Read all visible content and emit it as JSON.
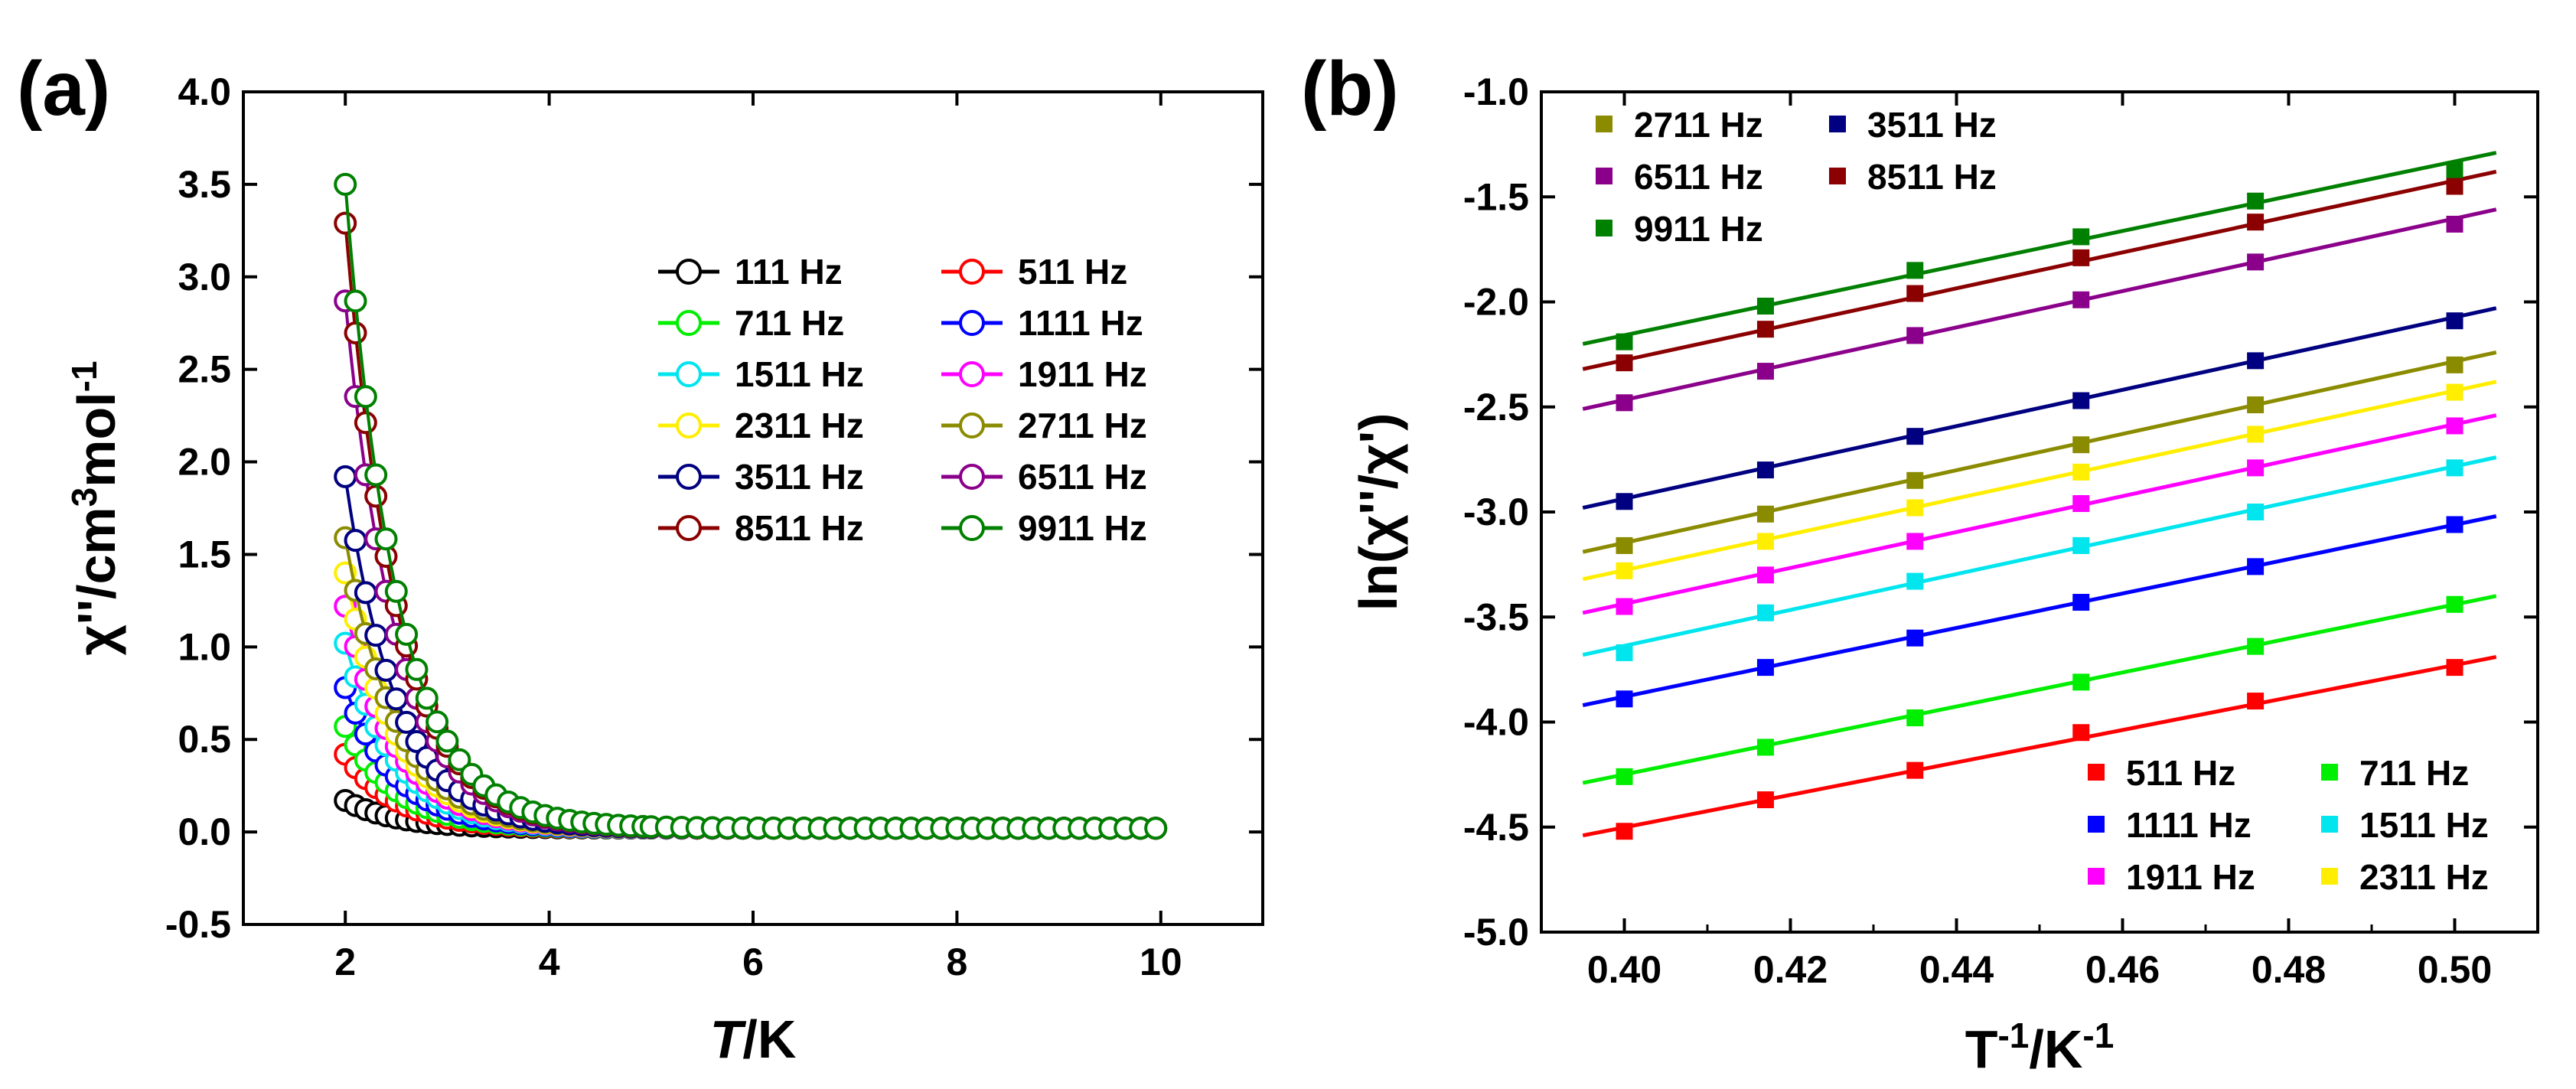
{
  "figure": {
    "panel_a_label": "(a)",
    "panel_b_label": "(b)"
  },
  "chart_data": [
    {
      "type": "scatter",
      "panel": "(a)",
      "title": "",
      "xlabel_italic": "T",
      "xlabel_rest": "/K",
      "ylabel_main": "χ''/cm",
      "ylabel_sup1": "3",
      "ylabel_mid": "mol",
      "ylabel_sup2": "-1",
      "xlim": [
        1.0,
        11.0
      ],
      "ylim": [
        -0.5,
        4.0
      ],
      "xticks": [
        2,
        4,
        6,
        8,
        10
      ],
      "xtick_labels": [
        "2",
        "4",
        "6",
        "8",
        "10"
      ],
      "yticks": [
        -0.5,
        0.0,
        0.5,
        1.0,
        1.5,
        2.0,
        2.5,
        3.0,
        3.5,
        4.0
      ],
      "ytick_labels": [
        "-0.5",
        "0.0",
        "0.5",
        "1.0",
        "1.5",
        "2.0",
        "2.5",
        "3.0",
        "3.5",
        "4.0"
      ],
      "grid": false,
      "legend_position": "upper-right",
      "marker": "open-circle",
      "series": [
        {
          "name": "111 Hz",
          "color": "#000000",
          "peak": 0.15
        },
        {
          "name": "511 Hz",
          "color": "#ff0000",
          "peak": 0.4
        },
        {
          "name": "711 Hz",
          "color": "#00ee00",
          "peak": 0.55
        },
        {
          "name": "1111 Hz",
          "color": "#0000ff",
          "peak": 0.76
        },
        {
          "name": "1511 Hz",
          "color": "#00e5ee",
          "peak": 1.0
        },
        {
          "name": "1911 Hz",
          "color": "#ff00ff",
          "peak": 1.2
        },
        {
          "name": "2311 Hz",
          "color": "#ffee00",
          "peak": 1.38
        },
        {
          "name": "2711 Hz",
          "color": "#8b8b00",
          "peak": 1.57
        },
        {
          "name": "3511 Hz",
          "color": "#000080",
          "peak": 1.9
        },
        {
          "name": "6511 Hz",
          "color": "#8b008b",
          "peak": 2.85
        },
        {
          "name": "8511 Hz",
          "color": "#8b0000",
          "peak": 3.27
        },
        {
          "name": "9911 Hz",
          "color": "#008000",
          "peak": 3.48
        }
      ],
      "curve_model": "y = peak * exp(-(T - 2) * 2.0) + 0.02 for T from 2 to 10 K"
    },
    {
      "type": "scatter",
      "panel": "(b)",
      "title": "",
      "xlabel_main": "T",
      "xlabel_sup1": "-1",
      "xlabel_mid": "/K",
      "xlabel_sup2": "-1",
      "ylabel": "ln(χ''/χ')",
      "xlim": [
        0.39,
        0.51
      ],
      "ylim": [
        -5.0,
        -1.0
      ],
      "xticks": [
        0.4,
        0.42,
        0.44,
        0.46,
        0.48,
        0.5
      ],
      "xtick_labels": [
        "0.40",
        "0.42",
        "0.44",
        "0.46",
        "0.48",
        "0.50"
      ],
      "yticks": [
        -5.0,
        -4.5,
        -4.0,
        -3.5,
        -3.0,
        -2.5,
        -2.0,
        -1.5,
        -1.0
      ],
      "ytick_labels": [
        "-5.0",
        "-4.5",
        "-4.0",
        "-3.5",
        "-3.0",
        "-2.5",
        "-2.0",
        "-1.5",
        "-1.0"
      ],
      "grid": false,
      "marker": "filled-square",
      "fit": "linear",
      "fit_range": [
        0.395,
        0.505
      ],
      "x": [
        0.4,
        0.417,
        0.435,
        0.455,
        0.476,
        0.5
      ],
      "legend_top": [
        "2711 Hz",
        "3511 Hz",
        "6511 Hz",
        "8511 Hz",
        "9911 Hz"
      ],
      "legend_bottom": [
        "511 Hz",
        "711 Hz",
        "1111 Hz",
        "1511 Hz",
        "1911 Hz",
        "2311 Hz"
      ],
      "series": [
        {
          "name": "511 Hz",
          "color": "#ff0000",
          "values": [
            -4.52,
            -4.37,
            -4.23,
            -4.05,
            -3.9,
            -3.74
          ],
          "fit_endpoints": [
            -4.54,
            -3.69
          ]
        },
        {
          "name": "711 Hz",
          "color": "#00ee00",
          "values": [
            -4.26,
            -4.12,
            -3.98,
            -3.81,
            -3.64,
            -3.44
          ],
          "fit_endpoints": [
            -4.29,
            -3.4
          ]
        },
        {
          "name": "1111 Hz",
          "color": "#0000ff",
          "values": [
            -3.89,
            -3.74,
            -3.6,
            -3.43,
            -3.26,
            -3.06
          ],
          "fit_endpoints": [
            -3.92,
            -3.02
          ]
        },
        {
          "name": "1511 Hz",
          "color": "#00e5ee",
          "values": [
            -3.67,
            -3.48,
            -3.33,
            -3.16,
            -3.0,
            -2.79
          ],
          "fit_endpoints": [
            -3.68,
            -2.74
          ]
        },
        {
          "name": "1911 Hz",
          "color": "#ff00ff",
          "values": [
            -3.45,
            -3.3,
            -3.14,
            -2.96,
            -2.79,
            -2.59
          ],
          "fit_endpoints": [
            -3.48,
            -2.54
          ]
        },
        {
          "name": "2311 Hz",
          "color": "#ffee00",
          "values": [
            -3.28,
            -3.14,
            -2.98,
            -2.81,
            -2.63,
            -2.43
          ],
          "fit_endpoints": [
            -3.32,
            -2.38
          ]
        },
        {
          "name": "2711 Hz",
          "color": "#8b8b00",
          "values": [
            -3.16,
            -3.01,
            -2.85,
            -2.68,
            -2.49,
            -2.3
          ],
          "fit_endpoints": [
            -3.19,
            -2.24
          ]
        },
        {
          "name": "3511 Hz",
          "color": "#000080",
          "values": [
            -2.95,
            -2.8,
            -2.64,
            -2.47,
            -2.28,
            -2.09
          ],
          "fit_endpoints": [
            -2.98,
            -2.03
          ]
        },
        {
          "name": "6511 Hz",
          "color": "#8b008b",
          "values": [
            -2.48,
            -2.33,
            -2.16,
            -1.99,
            -1.81,
            -1.63
          ],
          "fit_endpoints": [
            -2.51,
            -1.56
          ]
        },
        {
          "name": "8511 Hz",
          "color": "#8b0000",
          "values": [
            -2.29,
            -2.13,
            -1.96,
            -1.79,
            -1.62,
            -1.45
          ],
          "fit_endpoints": [
            -2.32,
            -1.38
          ]
        },
        {
          "name": "9911 Hz",
          "color": "#008000",
          "values": [
            -2.19,
            -2.02,
            -1.85,
            -1.69,
            -1.52,
            -1.37
          ],
          "fit_endpoints": [
            -2.2,
            -1.29
          ]
        }
      ]
    }
  ]
}
